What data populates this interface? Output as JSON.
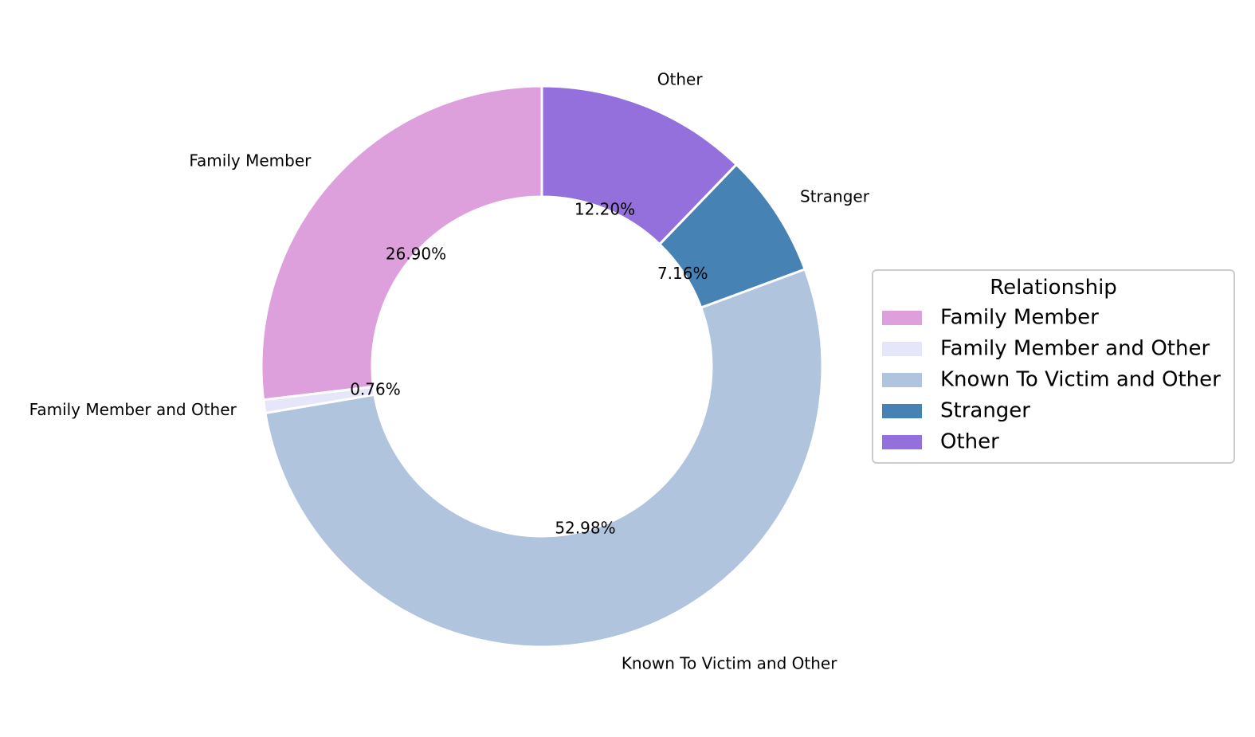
{
  "chart_data": {
    "type": "pie",
    "donut": true,
    "title": "",
    "categories": [
      "Family Member",
      "Family Member and Other",
      "Known To Victim and Other",
      "Stranger",
      "Other"
    ],
    "values": [
      26.9,
      0.76,
      52.98,
      7.16,
      12.2
    ],
    "percent_labels": [
      "26.90%",
      "0.76%",
      "52.98%",
      "7.16%",
      "12.20%"
    ],
    "colors": [
      "#dda0dd",
      "#e6e6fa",
      "#b0c4de",
      "#4682b4",
      "#9370db"
    ],
    "start_angle": "90 degrees, counter-clockwise",
    "legend": {
      "title": "Relationship",
      "placement": "right",
      "entries": [
        "Family Member",
        "Family Member and Other",
        "Known To Victim and Other",
        "Stranger",
        "Other"
      ]
    }
  }
}
